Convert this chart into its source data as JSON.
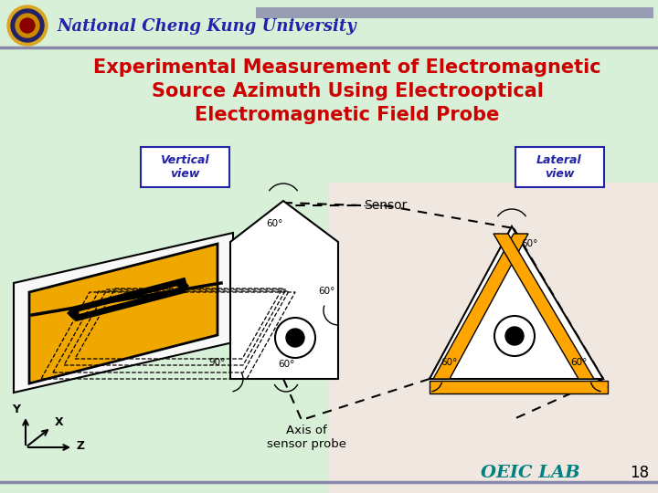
{
  "bg_color_left": "#d8f0d8",
  "bg_color_right": "#f0e8e0",
  "title_lines": [
    "Experimental Measurement of Electromagnetic",
    "Source Azimuth Using Electrooptical",
    "Electromagnetic Field Probe"
  ],
  "title_color": "#cc0000",
  "title_fontsize": 15,
  "header_text": "National Cheng Kung University",
  "header_color": "#2222aa",
  "header_fontsize": 13,
  "vertical_view_label": "Vertical\nview",
  "lateral_view_label": "Lateral\nview",
  "label_color": "#2222aa",
  "sensor_label": "Sensor",
  "axis_label": "Axis of\nsensor probe",
  "oeic_label": "OEIC LAB",
  "oeic_color": "#008080",
  "page_number": "18",
  "gold_color": "#F0A800",
  "orange_color": "#FFA500"
}
